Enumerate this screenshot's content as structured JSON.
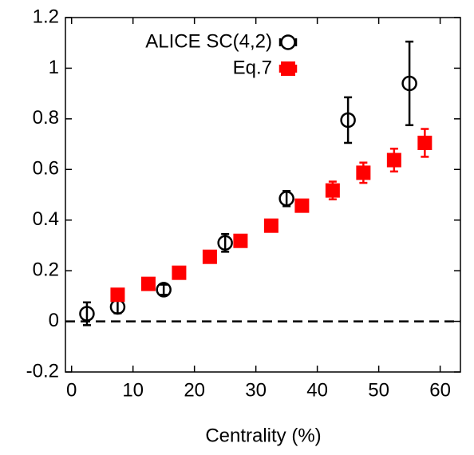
{
  "chart_data": {
    "type": "scatter",
    "x_label": "Centrality (%)",
    "xlim": [
      -1,
      63.3
    ],
    "xticks": [
      0,
      10,
      20,
      30,
      40,
      50,
      60
    ],
    "ylim": [
      -0.2,
      1.2
    ],
    "yticks": [
      -0.2,
      0,
      0.2,
      0.4,
      0.6,
      0.8,
      1,
      1.2
    ],
    "reference_line": 0,
    "legend": "top-left",
    "series": [
      {
        "name": "ALICE SC(4,2)",
        "color": "#000000",
        "marker": "open-circle",
        "x": [
          2.5,
          7.5,
          15,
          25,
          35,
          45,
          55
        ],
        "values": [
          0.03,
          0.057,
          0.125,
          0.31,
          0.485,
          0.795,
          0.94
        ],
        "errors": [
          0.045,
          0.025,
          0.02,
          0.035,
          0.03,
          0.09,
          0.165
        ]
      },
      {
        "name": "Eq.7",
        "color": "#ff0000",
        "marker": "filled-square",
        "x": [
          7.5,
          12.5,
          17.5,
          22.5,
          27.5,
          32.5,
          37.5,
          42.5,
          47.5,
          52.5,
          57.5
        ],
        "values": [
          0.105,
          0.148,
          0.192,
          0.255,
          0.318,
          0.378,
          0.457,
          0.517,
          0.587,
          0.637,
          0.705
        ],
        "errors": [
          0.01,
          0.01,
          0.01,
          0.01,
          0.01,
          0.015,
          0.02,
          0.035,
          0.04,
          0.045,
          0.055
        ]
      }
    ]
  }
}
